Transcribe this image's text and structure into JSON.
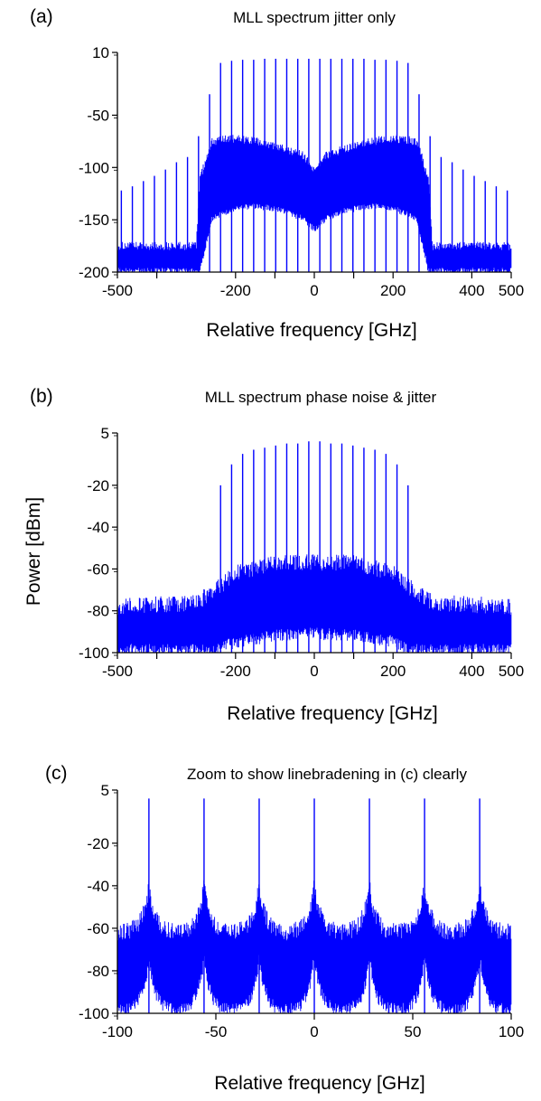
{
  "figure": {
    "ylabel": "Power [dBm]",
    "series_color": "#0000ff"
  },
  "chart_data": [
    {
      "type": "line",
      "panel_label": "(a)",
      "title": "MLL spectrum jitter only",
      "xlabel": "Relative frequency [GHz]",
      "ylabel": "",
      "xlim": [
        -500,
        500
      ],
      "ylim": [
        -200,
        10
      ],
      "x_ticks": [
        -500,
        -200,
        0,
        200,
        400,
        500
      ],
      "x_ticks_unlabeled": [
        -400,
        -100,
        100
      ],
      "y_ticks": [
        10,
        -50,
        -100,
        -150,
        -200
      ],
      "mode_spacing_ghz": 28,
      "central_band": [
        -290,
        290
      ],
      "series": [
        {
          "peaks_x": [
            -490,
            -462,
            -434,
            -406,
            -378,
            -350,
            -322,
            -294,
            -266,
            -238,
            -210,
            -182,
            -154,
            -126,
            -98,
            -70,
            -42,
            -14,
            14,
            42,
            70,
            98,
            126,
            154,
            182,
            210,
            238,
            266,
            294,
            322,
            350,
            378,
            406,
            434,
            462,
            490
          ],
          "peaks_y": [
            -122,
            -118,
            -113,
            -108,
            -102,
            -95,
            -90,
            -70,
            -30,
            0,
            2,
            3,
            3,
            4,
            4,
            4,
            4,
            4,
            4,
            4,
            4,
            4,
            4,
            3,
            3,
            2,
            0,
            -30,
            -70,
            -90,
            -95,
            -102,
            -108,
            -113,
            -118,
            -122
          ],
          "noise_envelope": {
            "x": [
              -500,
              -300,
              -290,
              -260,
              -200,
              -150,
              -80,
              -30,
              0,
              30,
              80,
              150,
              200,
              260,
              290,
              300,
              500
            ],
            "upper": [
              -175,
              -175,
              -110,
              -75,
              -72,
              -75,
              -82,
              -88,
              -102,
              -88,
              -82,
              -75,
              -72,
              -75,
              -110,
              -175,
              -175
            ],
            "lower": [
              -200,
              -200,
              -200,
              -150,
              -140,
              -138,
              -142,
              -150,
              -160,
              -150,
              -142,
              -138,
              -140,
              -150,
              -200,
              -200,
              -200
            ]
          }
        }
      ]
    },
    {
      "type": "line",
      "panel_label": "(b)",
      "title": "MLL spectrum phase noise & jitter",
      "xlabel": "Relative frequency [GHz]",
      "ylabel": "Power [dBm]",
      "xlim": [
        -500,
        500
      ],
      "ylim": [
        -100,
        5
      ],
      "x_ticks": [
        -500,
        -200,
        0,
        200,
        400,
        500
      ],
      "x_ticks_unlabeled": [
        -400,
        -100,
        100
      ],
      "y_ticks": [
        5,
        -20,
        -40,
        -60,
        -80,
        -100
      ],
      "mode_spacing_ghz": 28,
      "central_band": [
        -250,
        250
      ],
      "series": [
        {
          "peaks_x": [
            -238,
            -210,
            -182,
            -154,
            -126,
            -98,
            -70,
            -42,
            -14,
            14,
            42,
            70,
            98,
            126,
            154,
            182,
            210,
            238
          ],
          "peaks_y": [
            -20,
            -10,
            -5,
            -3,
            -2,
            -1,
            0,
            0,
            1,
            1,
            0,
            0,
            -1,
            -2,
            -3,
            -5,
            -10,
            -20
          ],
          "noise_envelope": {
            "x": [
              -500,
              -300,
              -250,
              -200,
              -100,
              0,
              100,
              200,
              250,
              300,
              500
            ],
            "upper": [
              -78,
              -76,
              -70,
              -62,
              -57,
              -57,
              -57,
              -62,
              -70,
              -76,
              -78
            ],
            "lower": [
              -100,
              -100,
              -100,
              -96,
              -93,
              -92,
              -93,
              -96,
              -100,
              -100,
              -100
            ]
          }
        }
      ]
    },
    {
      "type": "line",
      "panel_label": "(c)",
      "title": "Zoom to show linebradening in (c) clearly",
      "xlabel": "Relative frequency [GHz]",
      "ylabel": "",
      "xlim": [
        -100,
        100
      ],
      "ylim": [
        -100,
        5
      ],
      "x_ticks": [
        -100,
        -50,
        0,
        50,
        100
      ],
      "x_ticks_unlabeled": [],
      "y_ticks": [
        5,
        -20,
        -40,
        -60,
        -80,
        -100
      ],
      "mode_spacing_ghz": 28,
      "series": [
        {
          "peaks_x": [
            -84,
            -56,
            -28,
            0,
            28,
            56,
            84
          ],
          "peaks_y": [
            1,
            1,
            1,
            1,
            1,
            1,
            1
          ],
          "noise_envelope": {
            "floor_upper": -62,
            "floor_lower": -100,
            "shoulder_upper": -40,
            "shoulder_lower": -75
          }
        }
      ]
    }
  ]
}
